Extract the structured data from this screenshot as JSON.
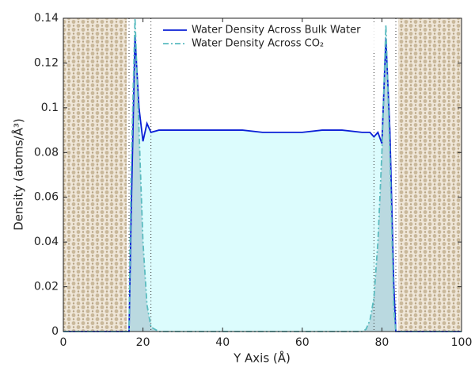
{
  "chart_data": {
    "type": "line",
    "xlabel": "Y Axis (Å)",
    "ylabel": "Density (atoms/Å³)",
    "x": [
      0,
      16.5,
      17,
      18,
      19,
      20,
      21,
      22,
      24,
      26,
      28,
      30,
      35,
      40,
      45,
      50,
      55,
      60,
      65,
      70,
      75,
      76,
      77,
      78,
      79,
      80,
      81,
      82,
      83,
      83.5,
      100
    ],
    "series": [
      {
        "name": "Water Density Across Bulk Water",
        "color": "#0a1fd6",
        "fill": "#dcfcfd",
        "dash": "solid",
        "values": [
          0,
          0,
          0.05,
          0.132,
          0.1,
          0.085,
          0.093,
          0.089,
          0.09,
          0.09,
          0.09,
          0.09,
          0.09,
          0.09,
          0.09,
          0.089,
          0.089,
          0.089,
          0.09,
          0.09,
          0.089,
          0.089,
          0.089,
          0.087,
          0.089,
          0.084,
          0.131,
          0.09,
          0.02,
          0,
          0
        ]
      },
      {
        "name": "Water Density Across CO₂",
        "color": "#5bbcc0",
        "fill": "#9fbcc8",
        "dash": "dashdot",
        "values": [
          0,
          0,
          0.07,
          0.14,
          0.09,
          0.04,
          0.012,
          0.002,
          0,
          0,
          0,
          0,
          0,
          0,
          0,
          0,
          0,
          0,
          0,
          0,
          0,
          0.001,
          0.005,
          0.015,
          0.04,
          0.08,
          0.137,
          0.08,
          0.01,
          0,
          0
        ]
      }
    ],
    "reference_lines": [
      16.5,
      22,
      78,
      83.5
    ],
    "xlim": [
      0,
      100
    ],
    "ylim": [
      0,
      0.14
    ],
    "xticks": [
      0,
      20,
      40,
      60,
      80,
      100
    ],
    "yticks": [
      0,
      0.02,
      0.04,
      0.06,
      0.08,
      0.1,
      0.12,
      0.14
    ],
    "legend": "top"
  }
}
